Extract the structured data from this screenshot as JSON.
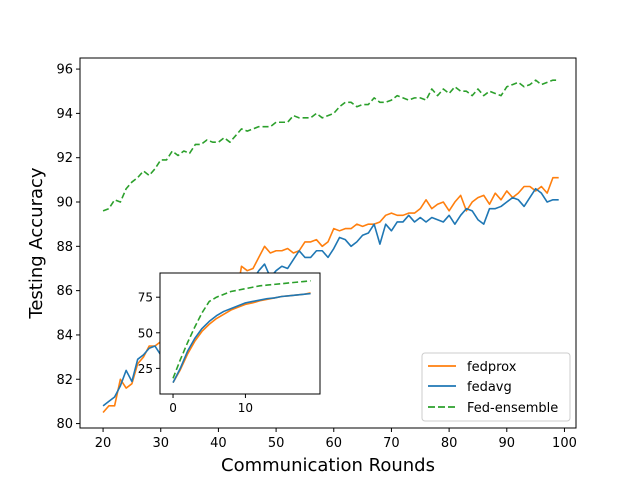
{
  "chart_data": [
    {
      "type": "line",
      "title": "",
      "xlabel": "Communication Rounds",
      "ylabel": "Testing Accuracy",
      "xlim": [
        16,
        102
      ],
      "ylim": [
        79.8,
        96.5
      ],
      "xticks": [
        20,
        30,
        40,
        50,
        60,
        70,
        80,
        90,
        100
      ],
      "yticks": [
        80,
        82,
        84,
        86,
        88,
        90,
        92,
        94,
        96
      ],
      "x": [
        20,
        21,
        22,
        23,
        24,
        25,
        26,
        27,
        28,
        29,
        30,
        31,
        32,
        33,
        34,
        35,
        36,
        37,
        38,
        39,
        40,
        41,
        42,
        43,
        44,
        45,
        46,
        47,
        48,
        49,
        50,
        51,
        52,
        53,
        54,
        55,
        56,
        57,
        58,
        59,
        60,
        61,
        62,
        63,
        64,
        65,
        66,
        67,
        68,
        69,
        70,
        71,
        72,
        73,
        74,
        75,
        76,
        77,
        78,
        79,
        80,
        81,
        82,
        83,
        84,
        85,
        86,
        87,
        88,
        89,
        90,
        91,
        92,
        93,
        94,
        95,
        96,
        97,
        98,
        99
      ],
      "legend_position": "lower-right",
      "grid": false,
      "series": [
        {
          "name": "fedprox",
          "color": "#ff7f0e",
          "dash": "solid",
          "values": [
            80.5,
            80.8,
            80.8,
            82.0,
            81.6,
            81.8,
            82.7,
            83.0,
            83.5,
            83.5,
            83.7,
            83.1,
            83.6,
            83.6,
            83.6,
            83.4,
            83.0,
            83.3,
            83.6,
            83.9,
            84.5,
            84.9,
            85.0,
            85.5,
            87.1,
            86.9,
            87.0,
            87.5,
            88.0,
            87.7,
            87.8,
            87.8,
            87.9,
            87.7,
            87.8,
            88.2,
            88.2,
            88.3,
            88.0,
            88.2,
            88.8,
            88.7,
            88.8,
            88.8,
            89.0,
            88.9,
            89.0,
            89.0,
            89.1,
            89.4,
            89.5,
            89.4,
            89.4,
            89.5,
            89.5,
            89.7,
            90.1,
            89.7,
            89.9,
            90.0,
            89.6,
            90.0,
            90.3,
            89.6,
            90.0,
            90.2,
            90.3,
            89.9,
            90.4,
            90.1,
            90.5,
            90.2,
            90.4,
            90.7,
            90.7,
            90.5,
            90.7,
            90.4,
            91.1,
            91.1
          ]
        },
        {
          "name": "fedavg",
          "color": "#1f77b4",
          "dash": "solid",
          "values": [
            80.8,
            81.0,
            81.2,
            81.7,
            82.4,
            81.9,
            82.9,
            83.1,
            83.4,
            83.5,
            83.1,
            82.9,
            82.4,
            82.7,
            82.2,
            82.3,
            82.9,
            82.8,
            82.5,
            82.9,
            83.9,
            84.2,
            84.5,
            84.9,
            85.5,
            86.1,
            86.5,
            86.9,
            87.2,
            86.6,
            86.9,
            87.1,
            87.0,
            87.4,
            87.8,
            87.5,
            87.5,
            87.8,
            87.8,
            87.5,
            87.9,
            88.4,
            88.3,
            88.0,
            88.2,
            88.5,
            88.6,
            89.0,
            88.1,
            89.0,
            88.7,
            89.1,
            89.1,
            89.4,
            89.1,
            89.3,
            89.1,
            89.3,
            89.2,
            89.1,
            89.4,
            89.0,
            89.4,
            89.7,
            89.6,
            89.2,
            89.0,
            89.7,
            89.7,
            89.8,
            90.0,
            90.2,
            90.1,
            89.8,
            90.2,
            90.6,
            90.4,
            90.0,
            90.1,
            90.1
          ]
        },
        {
          "name": "Fed-ensemble",
          "color": "#2ca02c",
          "dash": "dashed",
          "values": [
            89.6,
            89.7,
            90.1,
            90.0,
            90.6,
            90.9,
            91.1,
            91.4,
            91.2,
            91.5,
            91.9,
            91.9,
            92.3,
            92.1,
            92.3,
            92.2,
            92.6,
            92.6,
            92.8,
            92.7,
            92.7,
            92.9,
            92.7,
            93.0,
            93.3,
            93.2,
            93.3,
            93.4,
            93.4,
            93.4,
            93.6,
            93.6,
            93.6,
            93.9,
            93.8,
            93.8,
            93.8,
            94.0,
            93.8,
            93.9,
            94.0,
            94.3,
            94.5,
            94.5,
            94.3,
            94.4,
            94.4,
            94.7,
            94.5,
            94.5,
            94.6,
            94.8,
            94.7,
            94.6,
            94.7,
            94.7,
            94.6,
            95.1,
            94.8,
            95.1,
            94.9,
            95.2,
            95.0,
            95.0,
            94.8,
            95.1,
            94.8,
            95.0,
            94.9,
            94.8,
            95.2,
            95.3,
            95.4,
            95.2,
            95.3,
            95.5,
            95.3,
            95.4,
            95.5,
            95.5
          ]
        }
      ]
    },
    {
      "type": "line",
      "title": "",
      "xlabel": "",
      "ylabel": "",
      "xlim": [
        -1.8,
        20.3
      ],
      "ylim": [
        7,
        92
      ],
      "xticks": [
        0,
        10
      ],
      "yticks": [
        25,
        50,
        75
      ],
      "x": [
        0,
        1,
        2,
        3,
        4,
        5,
        6,
        7,
        8,
        9,
        10,
        11,
        12,
        13,
        14,
        15,
        16,
        17,
        18,
        19
      ],
      "grid": false,
      "series": [
        {
          "name": "fedprox",
          "color": "#ff7f0e",
          "dash": "solid",
          "values": [
            15,
            24,
            35,
            44,
            51,
            56,
            60,
            63,
            66,
            68,
            70,
            71,
            72.5,
            73.5,
            74.5,
            75.5,
            76,
            76.5,
            77,
            78
          ]
        },
        {
          "name": "fedavg",
          "color": "#1f77b4",
          "dash": "solid",
          "values": [
            15,
            25,
            37,
            46,
            53,
            58,
            62,
            65,
            67,
            69,
            71,
            72,
            73,
            74,
            74.5,
            75.5,
            76,
            76.5,
            77,
            77.5
          ]
        },
        {
          "name": "Fed-ensemble",
          "color": "#2ca02c",
          "dash": "dashed",
          "values": [
            18,
            31,
            43,
            54,
            64,
            72,
            75,
            77,
            79,
            80,
            81,
            82,
            83,
            83.5,
            84,
            84.5,
            85,
            85.5,
            86,
            86.5
          ]
        }
      ]
    }
  ]
}
